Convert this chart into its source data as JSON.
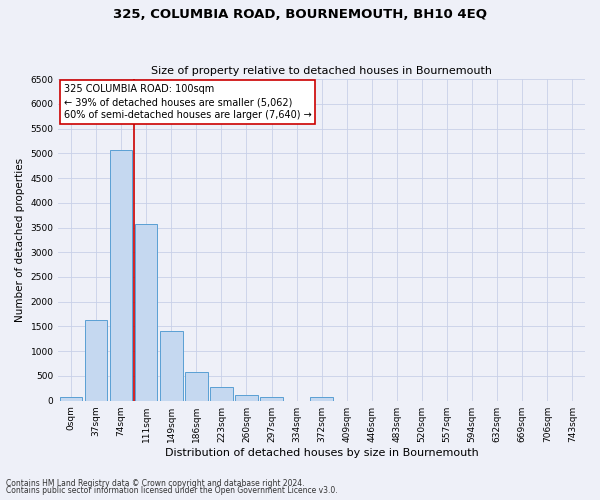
{
  "title": "325, COLUMBIA ROAD, BOURNEMOUTH, BH10 4EQ",
  "subtitle": "Size of property relative to detached houses in Bournemouth",
  "xlabel": "Distribution of detached houses by size in Bournemouth",
  "ylabel": "Number of detached properties",
  "footnote1": "Contains HM Land Registry data © Crown copyright and database right 2024.",
  "footnote2": "Contains public sector information licensed under the Open Government Licence v3.0.",
  "bar_labels": [
    "0sqm",
    "37sqm",
    "74sqm",
    "111sqm",
    "149sqm",
    "186sqm",
    "223sqm",
    "260sqm",
    "297sqm",
    "334sqm",
    "372sqm",
    "409sqm",
    "446sqm",
    "483sqm",
    "520sqm",
    "557sqm",
    "594sqm",
    "632sqm",
    "669sqm",
    "706sqm",
    "743sqm"
  ],
  "bar_values": [
    75,
    1625,
    5075,
    3575,
    1400,
    575,
    275,
    125,
    75,
    0,
    75,
    0,
    0,
    0,
    0,
    0,
    0,
    0,
    0,
    0,
    0
  ],
  "bar_color": "#c5d8f0",
  "bar_edge_color": "#5a9fd4",
  "vline_x": 2.5,
  "vline_color": "#cc0000",
  "ylim": [
    0,
    6500
  ],
  "yticks": [
    0,
    500,
    1000,
    1500,
    2000,
    2500,
    3000,
    3500,
    4000,
    4500,
    5000,
    5500,
    6000,
    6500
  ],
  "annotation_text": "325 COLUMBIA ROAD: 100sqm\n← 39% of detached houses are smaller (5,062)\n60% of semi-detached houses are larger (7,640) →",
  "annotation_box_color": "#ffffff",
  "annotation_box_edge": "#cc0000",
  "grid_color": "#c8d0e8",
  "bg_color": "#eef0f8",
  "title_fontsize": 9.5,
  "subtitle_fontsize": 8,
  "xlabel_fontsize": 8,
  "ylabel_fontsize": 7.5,
  "tick_fontsize": 6.5,
  "annotation_fontsize": 7,
  "footnote_fontsize": 5.5
}
